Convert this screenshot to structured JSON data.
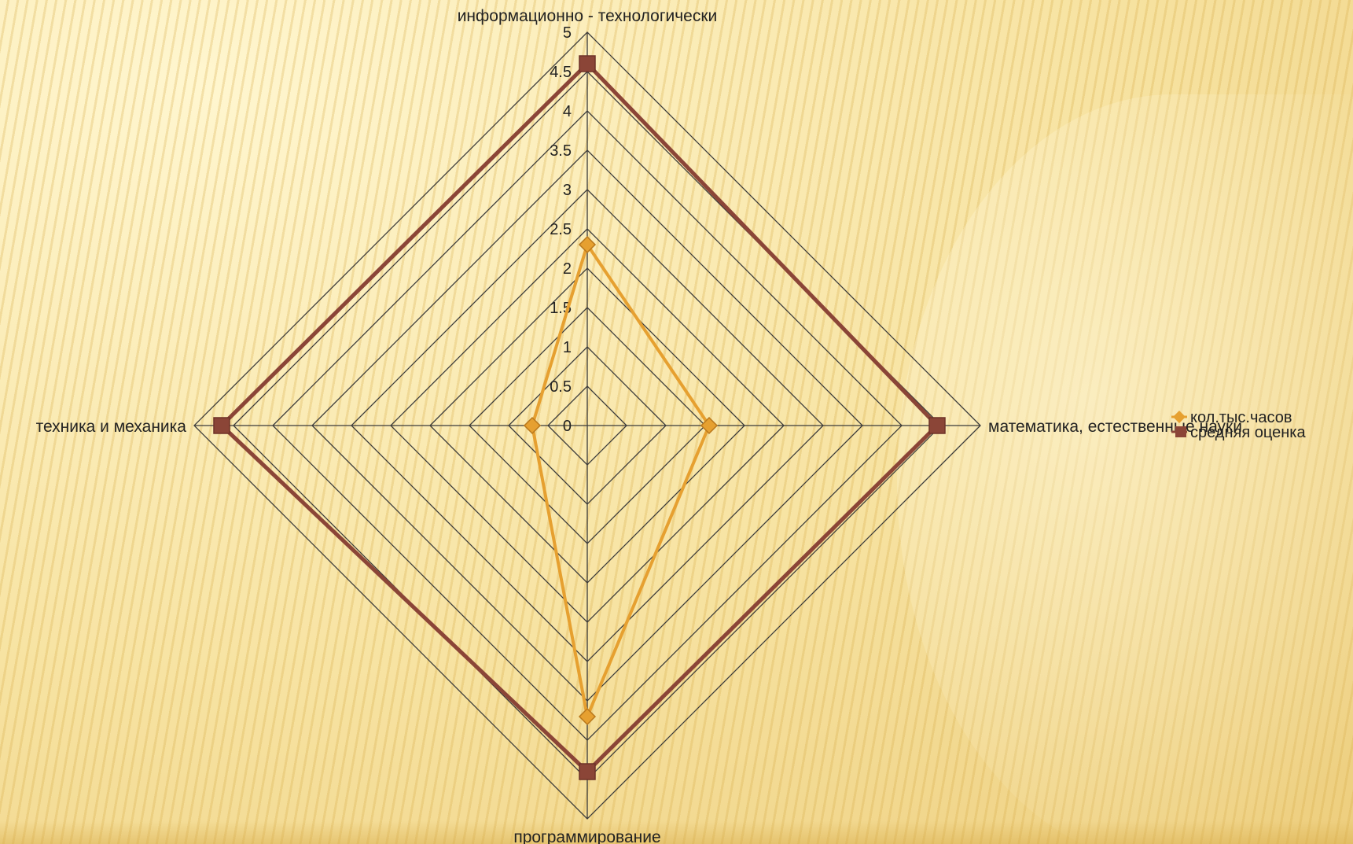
{
  "chart_data": {
    "type": "radar",
    "categories": [
      "информационно - технологически",
      "математика, естественные науки",
      "программирование",
      "техника и механика"
    ],
    "series": [
      {
        "name": "кол.тыс.часов",
        "values": [
          2.3,
          1.55,
          3.7,
          0.7
        ],
        "color": "#e6a030",
        "marker": "diamond"
      },
      {
        "name": "средняя оценка",
        "values": [
          4.6,
          4.45,
          4.4,
          4.65
        ],
        "color": "#8b4537",
        "marker": "square"
      }
    ],
    "r_ticks": [
      "0",
      "0.5",
      "1",
      "1.5",
      "2",
      "2.5",
      "3",
      "3.5",
      "4",
      "4.5",
      "5"
    ],
    "r_max": 5,
    "legend_position": "right",
    "grid": true
  }
}
